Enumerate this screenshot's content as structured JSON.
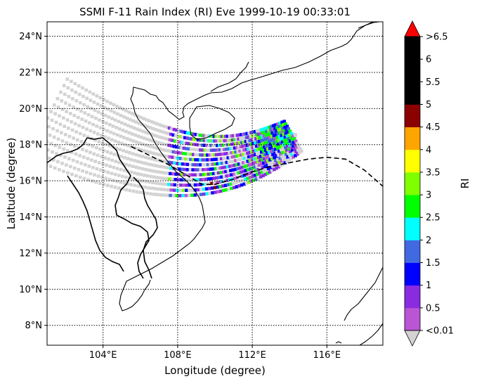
{
  "title": "SSMI F-11 Rain Index (RI) Eve 1999-10-19 00:33:01",
  "xlabel": "Longitude (degree)",
  "ylabel": "Latitude (degree)",
  "colorbar_label": "RI",
  "map": {
    "lon_range": [
      101.0,
      119.0
    ],
    "lat_range": [
      6.9,
      24.8
    ],
    "lon_ticks": [
      {
        "value": 104,
        "label": "104°E"
      },
      {
        "value": 108,
        "label": "108°E"
      },
      {
        "value": 112,
        "label": "112°E"
      },
      {
        "value": 116,
        "label": "116°E"
      }
    ],
    "lat_ticks": [
      {
        "value": 8,
        "label": "8°N"
      },
      {
        "value": 10,
        "label": "10°N"
      },
      {
        "value": 12,
        "label": "12°N"
      },
      {
        "value": 14,
        "label": "14°N"
      },
      {
        "value": 16,
        "label": "16°N"
      },
      {
        "value": 18,
        "label": "18°N"
      },
      {
        "value": 20,
        "label": "20°N"
      },
      {
        "value": 22,
        "label": "22°N"
      },
      {
        "value": 24,
        "label": "24°N"
      }
    ],
    "grid": "dotted",
    "no_rain_color": "#d3d3d3",
    "track_color": "#000000",
    "storm_track": [
      [
        105.5,
        17.9
      ],
      [
        106.5,
        17.4
      ],
      [
        107.5,
        16.9
      ],
      [
        108.5,
        16.3
      ],
      [
        109.3,
        15.8
      ],
      [
        110.0,
        15.8
      ],
      [
        111.0,
        16.1
      ],
      [
        112.0,
        16.5
      ],
      [
        113.0,
        16.8
      ],
      [
        114.0,
        17.0
      ],
      [
        115.0,
        17.2
      ],
      [
        116.0,
        17.3
      ],
      [
        117.0,
        17.2
      ],
      [
        118.0,
        16.6
      ],
      [
        119.0,
        15.7
      ]
    ]
  },
  "colorbar": {
    "labels": [
      "<0.01",
      "0.5",
      "1",
      "1.5",
      "2",
      "2.5",
      "3",
      "3.5",
      "4",
      "4.5",
      "5",
      "5.5",
      "6",
      ">6.5"
    ],
    "colors": [
      "#ba55d3",
      "#8a2be2",
      "#0000ff",
      "#4169e1",
      "#00ffff",
      "#00ff00",
      "#7fff00",
      "#ffff00",
      "#ffa500",
      "#8b0000",
      "#000000",
      "#000000",
      "#000000"
    ],
    "under_color": "#d3d3d3",
    "over_color": "#ff0000"
  }
}
